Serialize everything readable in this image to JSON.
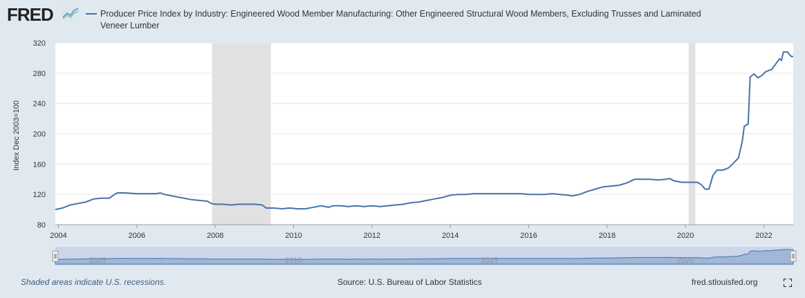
{
  "header": {
    "logo_text": "FRED",
    "title_line1": "Producer Price Index by Industry: Engineered Wood Member Manufacturing: Other Engineered Structural Wood Members, Excluding Trusses and Laminated",
    "title_line2": "Veneer Lumber"
  },
  "footer": {
    "recession_note": "Shaded areas indicate U.S. recessions.",
    "source": "Source: U.S. Bureau of Labor Statistics",
    "site": "fred.stlouisfed.org"
  },
  "colors": {
    "line": "#4572a7",
    "recession": "#e1e1e1",
    "navigator": "#c7d2e8"
  },
  "chart_data": {
    "type": "line",
    "title": "Producer Price Index by Industry: Engineered Wood Member Manufacturing: Other Engineered Structural Wood Members, Excluding Trusses and Laminated Veneer Lumber",
    "xlabel": "",
    "ylabel": "Index Dec 2003=100",
    "xlim": [
      2003.92,
      2022.75
    ],
    "ylim": [
      80,
      320
    ],
    "y_ticks": [
      80,
      120,
      160,
      200,
      240,
      280,
      320
    ],
    "x_ticks": [
      "2004",
      "2006",
      "2008",
      "2010",
      "2012",
      "2014",
      "2016",
      "2018",
      "2020",
      "2022"
    ],
    "navigator_labels": [
      "2005",
      "2010",
      "2015",
      "2020"
    ],
    "recessions": [
      [
        2007.92,
        2009.42
      ],
      [
        2020.08,
        2020.25
      ]
    ],
    "grid": true,
    "series": [
      {
        "name": "Producer Price Index by Industry: Engineered Wood Member Manufacturing: Other Engineered Structural Wood Members, Excluding Trusses and Laminated Veneer Lumber",
        "points": [
          [
            2003.92,
            100
          ],
          [
            2004.1,
            102
          ],
          [
            2004.2,
            104
          ],
          [
            2004.3,
            106
          ],
          [
            2004.5,
            108
          ],
          [
            2004.7,
            110
          ],
          [
            2004.9,
            114
          ],
          [
            2005.1,
            115
          ],
          [
            2005.3,
            115
          ],
          [
            2005.4,
            119
          ],
          [
            2005.5,
            122
          ],
          [
            2005.7,
            122
          ],
          [
            2006.0,
            121
          ],
          [
            2006.3,
            121
          ],
          [
            2006.5,
            121
          ],
          [
            2006.6,
            122
          ],
          [
            2006.7,
            120
          ],
          [
            2006.9,
            118
          ],
          [
            2007.0,
            117
          ],
          [
            2007.2,
            115
          ],
          [
            2007.4,
            113
          ],
          [
            2007.6,
            112
          ],
          [
            2007.8,
            111
          ],
          [
            2007.9,
            108
          ],
          [
            2008.0,
            107
          ],
          [
            2008.2,
            107
          ],
          [
            2008.4,
            106
          ],
          [
            2008.6,
            107
          ],
          [
            2008.8,
            107
          ],
          [
            2009.0,
            107
          ],
          [
            2009.2,
            106
          ],
          [
            2009.3,
            102
          ],
          [
            2009.5,
            102
          ],
          [
            2009.7,
            101
          ],
          [
            2009.9,
            102
          ],
          [
            2010.1,
            101
          ],
          [
            2010.3,
            101
          ],
          [
            2010.5,
            103
          ],
          [
            2010.7,
            105
          ],
          [
            2010.9,
            103
          ],
          [
            2011.0,
            105
          ],
          [
            2011.2,
            105
          ],
          [
            2011.4,
            104
          ],
          [
            2011.6,
            105
          ],
          [
            2011.8,
            104
          ],
          [
            2012.0,
            105
          ],
          [
            2012.2,
            104
          ],
          [
            2012.4,
            105
          ],
          [
            2012.6,
            106
          ],
          [
            2012.8,
            107
          ],
          [
            2013.0,
            109
          ],
          [
            2013.2,
            110
          ],
          [
            2013.4,
            112
          ],
          [
            2013.6,
            114
          ],
          [
            2013.8,
            116
          ],
          [
            2014.0,
            119
          ],
          [
            2014.2,
            120
          ],
          [
            2014.4,
            120
          ],
          [
            2014.6,
            121
          ],
          [
            2014.8,
            121
          ],
          [
            2015.0,
            121
          ],
          [
            2015.2,
            121
          ],
          [
            2015.4,
            121
          ],
          [
            2015.6,
            121
          ],
          [
            2015.8,
            121
          ],
          [
            2016.0,
            120
          ],
          [
            2016.2,
            120
          ],
          [
            2016.4,
            120
          ],
          [
            2016.6,
            121
          ],
          [
            2016.8,
            120
          ],
          [
            2017.0,
            119
          ],
          [
            2017.1,
            118
          ],
          [
            2017.3,
            120
          ],
          [
            2017.5,
            124
          ],
          [
            2017.7,
            127
          ],
          [
            2017.9,
            130
          ],
          [
            2018.1,
            131
          ],
          [
            2018.3,
            132
          ],
          [
            2018.5,
            135
          ],
          [
            2018.7,
            140
          ],
          [
            2018.9,
            140
          ],
          [
            2019.1,
            140
          ],
          [
            2019.3,
            139
          ],
          [
            2019.5,
            140
          ],
          [
            2019.6,
            141
          ],
          [
            2019.7,
            138
          ],
          [
            2019.9,
            136
          ],
          [
            2020.1,
            136
          ],
          [
            2020.3,
            136
          ],
          [
            2020.4,
            133
          ],
          [
            2020.5,
            127
          ],
          [
            2020.6,
            127
          ],
          [
            2020.7,
            145
          ],
          [
            2020.8,
            152
          ],
          [
            2020.95,
            152
          ],
          [
            2021.1,
            155
          ],
          [
            2021.2,
            160
          ],
          [
            2021.35,
            168
          ],
          [
            2021.45,
            190
          ],
          [
            2021.5,
            210
          ],
          [
            2021.6,
            213
          ],
          [
            2021.65,
            275
          ],
          [
            2021.75,
            279
          ],
          [
            2021.85,
            274
          ],
          [
            2021.95,
            277
          ],
          [
            2022.05,
            282
          ],
          [
            2022.2,
            285
          ],
          [
            2022.3,
            292
          ],
          [
            2022.4,
            299
          ],
          [
            2022.45,
            297
          ],
          [
            2022.5,
            308
          ],
          [
            2022.6,
            308
          ],
          [
            2022.7,
            302
          ],
          [
            2022.75,
            302
          ]
        ]
      }
    ]
  }
}
